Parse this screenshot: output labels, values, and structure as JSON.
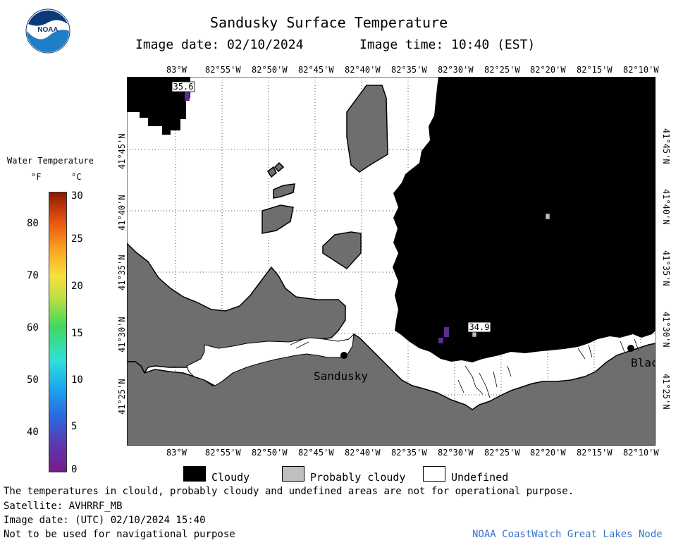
{
  "header": {
    "title": "Sandusky Surface Temperature",
    "image_date": "Image date: 02/10/2024",
    "image_time": "Image time: 10:40 (EST)"
  },
  "logo": {
    "text": "NOAA",
    "icon": "noaa-logo-icon",
    "colors": {
      "blue": "#1f7fc6",
      "dark": "#0a3a7a"
    }
  },
  "scale": {
    "title": "Water Temperature",
    "unit_f": "°F",
    "unit_c": "°C",
    "f_ticks": [
      "80",
      "70",
      "60",
      "50",
      "40"
    ],
    "c_ticks": [
      "30",
      "25",
      "20",
      "15",
      "10",
      "5",
      "0"
    ]
  },
  "map": {
    "lon_labels": [
      "83°W",
      "82°55'W",
      "82°50'W",
      "82°45'W",
      "82°40'W",
      "82°35'W",
      "82°30'W",
      "82°25'W",
      "82°20'W",
      "82°15'W",
      "82°10'W"
    ],
    "lat_labels": [
      "41°45'N",
      "41°40'N",
      "41°35'N",
      "41°30'N",
      "41°25'N"
    ],
    "places": {
      "sandusky": "Sandusky",
      "bla": "Blac"
    },
    "readings": {
      "r1": "35.6",
      "r2": "34.9"
    },
    "colors": {
      "cloudy": "#000000",
      "land": "#6e6e6e",
      "probably_cloudy": "#6e6e6e",
      "undefined": "#ffffff",
      "purple": "#5a2d91"
    }
  },
  "legend": {
    "cloudy": "Cloudy",
    "probably_cloudy": "Probably cloudy",
    "undefined": "Undefined"
  },
  "footer": {
    "line1": "The temperatures in clould, probably cloudy and undefined areas are not for operational purpose.",
    "line2": "Satellite: AVHRRF_MB",
    "line3": "Image date: (UTC) 02/10/2024  15:40",
    "line4": "Not to be used for navigational purpose",
    "credit": "NOAA CoastWatch Great Lakes Node"
  }
}
